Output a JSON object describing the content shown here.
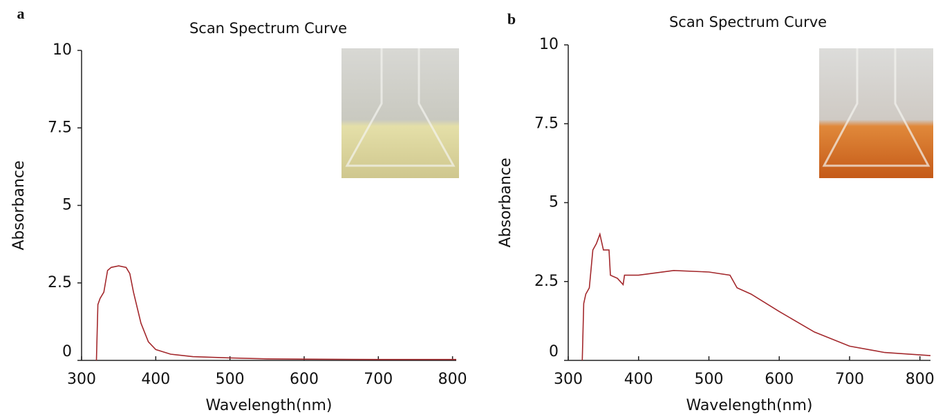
{
  "chart_data": [
    {
      "type": "line",
      "panel_label": "a",
      "title": "Scan Spectrum Curve",
      "x_label": "Wavelength(nm)",
      "y_label": "Absorbance",
      "x": [
        320,
        322,
        325,
        330,
        335,
        340,
        350,
        360,
        365,
        370,
        380,
        390,
        400,
        420,
        450,
        500,
        550,
        600,
        700,
        805
      ],
      "values": [
        0,
        1.8,
        2.0,
        2.2,
        2.9,
        3.0,
        3.05,
        3.0,
        2.8,
        2.2,
        1.2,
        0.6,
        0.35,
        0.2,
        0.12,
        0.08,
        0.05,
        0.04,
        0.03,
        0.03
      ],
      "color": "#a3282c",
      "xlim": [
        300,
        805
      ],
      "ylim": [
        0,
        10
      ],
      "xticks": [
        300,
        400,
        500,
        600,
        700,
        800
      ],
      "yticks": [
        0,
        2.5,
        5,
        7.5,
        10
      ],
      "grid": false
    },
    {
      "type": "line",
      "panel_label": "b",
      "title": "Scan Spectrum Curve",
      "x_label": "Wavelength(nm)",
      "y_label": "Absorbance",
      "x": [
        320,
        322,
        325,
        330,
        335,
        340,
        345,
        350,
        358,
        360,
        370,
        378,
        380,
        400,
        450,
        500,
        530,
        540,
        560,
        600,
        650,
        700,
        750,
        815
      ],
      "values": [
        0,
        1.8,
        2.1,
        2.3,
        3.5,
        3.7,
        4.0,
        3.5,
        3.5,
        2.7,
        2.6,
        2.4,
        2.7,
        2.7,
        2.85,
        2.8,
        2.7,
        2.3,
        2.1,
        1.55,
        0.9,
        0.45,
        0.25,
        0.15
      ],
      "color": "#a3282c",
      "xlim": [
        300,
        815
      ],
      "ylim": [
        0,
        10
      ],
      "xticks": [
        300,
        400,
        500,
        600,
        700,
        800
      ],
      "yticks": [
        0,
        2.5,
        5,
        7.5,
        10
      ],
      "grid": false
    }
  ]
}
